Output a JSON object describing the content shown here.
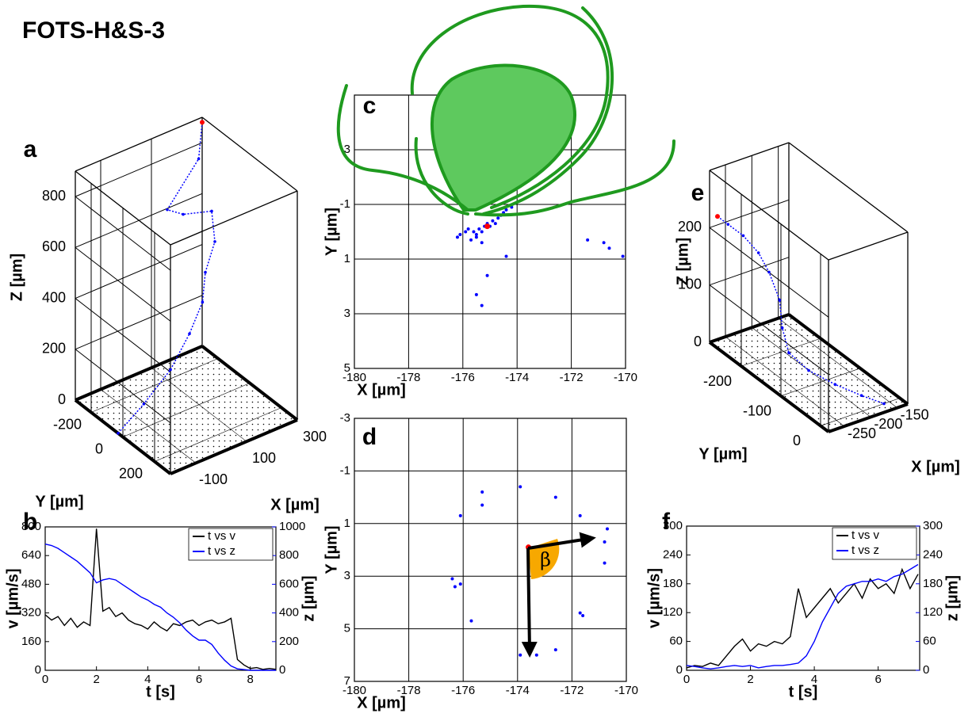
{
  "title": "FOTS-H&S-3",
  "chart_data": [
    {
      "type": "scatter3d",
      "label": "a",
      "xlabel": "X [µm]",
      "ylabel": "Y [µm]",
      "zlabel": "Z [µm]",
      "x": [
        300,
        280,
        150,
        200,
        300,
        300,
        250,
        220,
        150,
        50,
        -80,
        -200
      ],
      "y": [
        -300,
        -290,
        -280,
        -260,
        -240,
        -220,
        -200,
        -170,
        -140,
        -100,
        -60,
        -30
      ],
      "z": [
        880,
        750,
        610,
        580,
        560,
        450,
        360,
        270,
        190,
        110,
        50,
        0
      ],
      "color": "#0000ff",
      "start_color": "#ff0000",
      "xlim": [
        -200,
        300
      ],
      "ylim": [
        -300,
        300
      ],
      "zlim": [
        0,
        900
      ],
      "xticks": [
        -100,
        100,
        300
      ],
      "yticks": [
        -200,
        0,
        200
      ],
      "zticks": [
        0,
        200,
        400,
        600,
        800
      ]
    },
    {
      "type": "line",
      "label": "b",
      "xlabel": "t [s]",
      "ylabel": "v [µm/s]",
      "y2label": "z [µm]",
      "x": [
        0,
        0.25,
        0.5,
        0.75,
        1,
        1.25,
        1.5,
        1.75,
        2,
        2.25,
        2.5,
        2.75,
        3,
        3.25,
        3.5,
        3.75,
        4,
        4.25,
        4.5,
        4.75,
        5,
        5.25,
        5.5,
        5.75,
        6,
        6.25,
        6.5,
        6.75,
        7,
        7.25,
        7.5,
        7.75,
        8,
        8.25,
        8.5,
        8.75,
        9
      ],
      "series": [
        {
          "name": "t vs v",
          "color": "#000000",
          "values": [
            310,
            280,
            300,
            250,
            290,
            240,
            270,
            250,
            790,
            330,
            350,
            300,
            320,
            280,
            260,
            250,
            230,
            270,
            240,
            220,
            260,
            250,
            270,
            280,
            250,
            270,
            280,
            260,
            270,
            290,
            60,
            30,
            10,
            15,
            5,
            10,
            5
          ]
        },
        {
          "name": "t vs z",
          "color": "#0000ff",
          "axis": "y2",
          "values": [
            880,
            870,
            850,
            820,
            790,
            760,
            720,
            680,
            610,
            630,
            640,
            630,
            600,
            570,
            540,
            510,
            490,
            460,
            440,
            400,
            370,
            330,
            280,
            240,
            210,
            210,
            180,
            120,
            70,
            30,
            10,
            5,
            0,
            0,
            0,
            0,
            0
          ]
        }
      ],
      "xlim": [
        0,
        9
      ],
      "xticks": [
        0,
        2,
        4,
        6,
        8
      ],
      "ylim": [
        0,
        800
      ],
      "yticks": [
        0,
        160,
        320,
        480,
        640,
        800
      ],
      "y2lim": [
        0,
        1000
      ],
      "y2ticks": [
        0,
        200,
        400,
        600,
        800,
        1000
      ],
      "grid": false,
      "legend": "upper right"
    },
    {
      "type": "scatter",
      "label": "c",
      "xlabel": "X [µm]",
      "ylabel": "Y [µm]",
      "x": [
        -176.1,
        -175.9,
        -175.8,
        -175.6,
        -175.5,
        -175.4,
        -175.3,
        -175.2,
        -175.1,
        -175.0,
        -174.9,
        -174.8,
        -174.7,
        -174.6,
        -174.5,
        -174.4,
        -174.2,
        -175.7,
        -175.5,
        -175.3,
        -176.2,
        -175.5,
        -175.3,
        -175.1,
        -174.4,
        -171.4,
        -170.8,
        -170.6,
        -170.1
      ],
      "values": [
        0.1,
        0.0,
        -0.1,
        0.0,
        0.1,
        -0.1,
        0.0,
        -0.2,
        -0.3,
        -0.2,
        -0.4,
        -0.3,
        -0.5,
        -0.6,
        -0.7,
        -0.8,
        -0.9,
        0.3,
        0.2,
        0.4,
        0.2,
        2.3,
        2.7,
        1.6,
        0.9,
        0.3,
        0.4,
        0.6,
        0.9
      ],
      "color": "#0000ff",
      "highlight": {
        "x": -175.1,
        "y": -0.2,
        "color": "#ff0000"
      },
      "xlim": [
        -180,
        -170
      ],
      "xticks": [
        -180,
        -178,
        -176,
        -174,
        -172,
        -170
      ],
      "ylim": [
        -5,
        5
      ],
      "yticks": [
        {
          "value": -3,
          "label": "3"
        },
        -1,
        1,
        3,
        5
      ],
      "yreverse": true,
      "grid": true
    },
    {
      "type": "scatter",
      "label": "d",
      "xlabel": "X [µm]",
      "ylabel": "Y [µm]",
      "annotation": "β",
      "x": [
        -173.9,
        -175.3,
        -175.3,
        -172.6,
        -176.1,
        -171.7,
        -170.7,
        -170.8,
        -170.8,
        -176.4,
        -176.3,
        -176.1,
        -175.7,
        -171.7,
        -171.6,
        -173.9,
        -173.3,
        -172.6
      ],
      "values": [
        -0.4,
        -0.2,
        0.3,
        0.0,
        0.7,
        0.7,
        1.2,
        1.7,
        2.5,
        3.1,
        3.4,
        3.3,
        4.7,
        4.4,
        4.5,
        6.0,
        6.0,
        5.8
      ],
      "color": "#0000ff",
      "highlight": {
        "x": -173.6,
        "y": 1.9,
        "color": "#ff0000"
      },
      "xlim": [
        -180,
        -170
      ],
      "xticks": [
        -180,
        -178,
        -176,
        -174,
        -172,
        -170
      ],
      "ylim": [
        -3,
        7
      ],
      "yticks": [
        -3,
        -1,
        1,
        3,
        5,
        7
      ],
      "yreverse": true,
      "grid": true
    },
    {
      "type": "scatter3d",
      "label": "e",
      "xlabel": "X [µm]",
      "ylabel": "Y [µm]",
      "zlabel": "Z [µm]",
      "x": [
        -280,
        -275,
        -265,
        -255,
        -250,
        -245,
        -240,
        -235,
        -220,
        -200,
        -180,
        -160
      ],
      "y": [
        -260,
        -240,
        -215,
        -190,
        -170,
        -150,
        -150,
        -140,
        -110,
        -70,
        -30,
        0
      ],
      "z": [
        230,
        225,
        215,
        195,
        170,
        130,
        80,
        40,
        20,
        10,
        5,
        0
      ],
      "color": "#0000ff",
      "start_color": "#ff0000",
      "xlim": [
        -280,
        -130
      ],
      "ylim": [
        -280,
        20
      ],
      "zlim": [
        0,
        300
      ],
      "xticks": [
        -250,
        -200,
        -150
      ],
      "yticks": [
        -200,
        -100,
        0
      ],
      "zticks": [
        0,
        100,
        200
      ]
    },
    {
      "type": "line",
      "label": "f",
      "xlabel": "t [s]",
      "ylabel": "v [µm/s]",
      "y2label": "z [µm]",
      "x": [
        0,
        0.25,
        0.5,
        0.75,
        1,
        1.25,
        1.5,
        1.75,
        2,
        2.25,
        2.5,
        2.75,
        3,
        3.25,
        3.5,
        3.75,
        4,
        4.25,
        4.5,
        4.75,
        5,
        5.25,
        5.5,
        5.75,
        6,
        6.25,
        6.5,
        6.75,
        7,
        7.25
      ],
      "series": [
        {
          "name": "t vs v",
          "color": "#000000",
          "values": [
            5,
            10,
            8,
            15,
            10,
            30,
            50,
            65,
            40,
            55,
            50,
            60,
            55,
            70,
            170,
            110,
            130,
            150,
            170,
            140,
            160,
            180,
            150,
            190,
            170,
            180,
            160,
            210,
            170,
            200
          ]
        },
        {
          "name": "t vs z",
          "color": "#0000ff",
          "axis": "y2",
          "values": [
            10,
            8,
            5,
            3,
            5,
            8,
            10,
            8,
            10,
            5,
            8,
            10,
            10,
            12,
            15,
            30,
            60,
            100,
            130,
            160,
            175,
            180,
            185,
            185,
            190,
            185,
            195,
            200,
            210,
            220
          ]
        }
      ],
      "xlim": [
        0,
        7.3
      ],
      "xticks": [
        0,
        2,
        4,
        6
      ],
      "ylim": [
        0,
        300
      ],
      "yticks": [
        0,
        60,
        120,
        180,
        240,
        300
      ],
      "y2lim": [
        0,
        300
      ],
      "y2ticks": [
        0,
        60,
        120,
        180,
        240,
        300
      ],
      "grid": false,
      "legend": "upper right"
    }
  ]
}
